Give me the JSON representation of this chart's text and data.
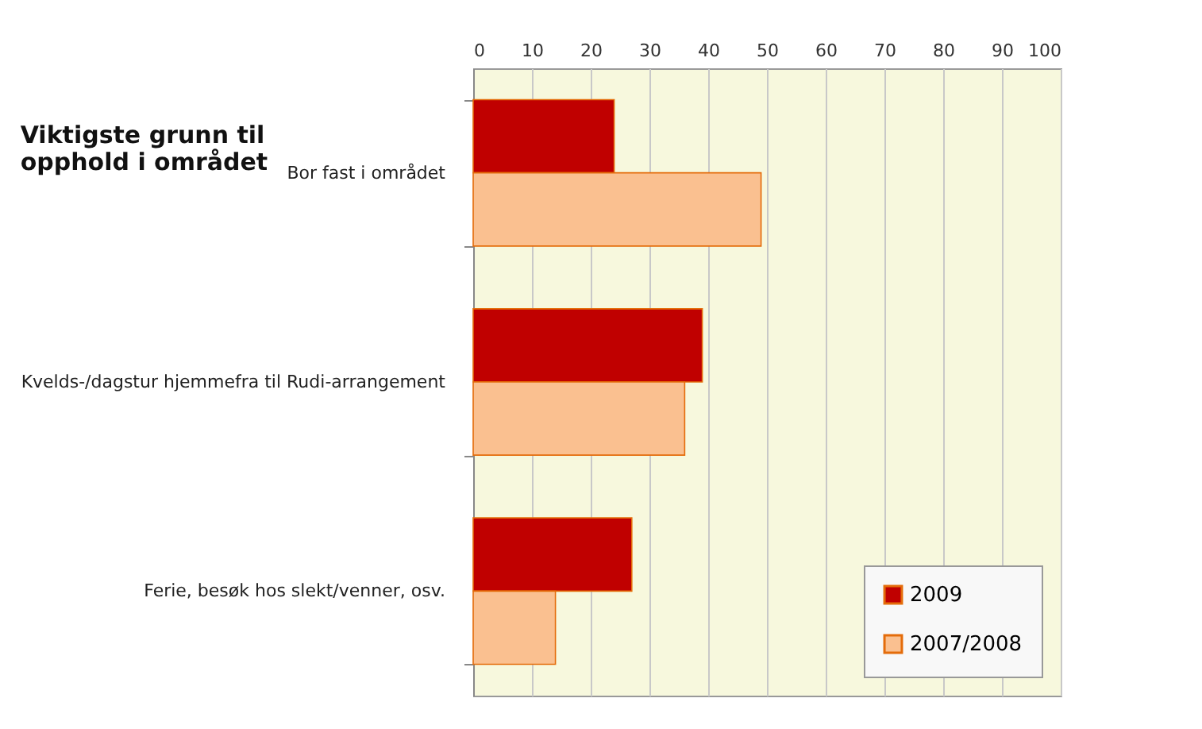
{
  "chart_data": {
    "type": "bar",
    "orientation": "horizontal",
    "title": "Viktigste grunn til\nopphold i området",
    "categories": [
      "Bor fast i området",
      "Kvelds-/dagstur hjemmefra til Rudi-arrangement",
      "Ferie, besøk hos slekt/venner, osv."
    ],
    "series": [
      {
        "name": "2009",
        "color": "#c00000",
        "values": [
          24,
          39,
          27
        ]
      },
      {
        "name": "2007/2008",
        "color": "#fac090",
        "values": [
          49,
          36,
          14
        ]
      }
    ],
    "xlim": [
      0,
      100
    ],
    "xticks": [
      0,
      10,
      20,
      30,
      40,
      50,
      60,
      70,
      80,
      90,
      100
    ],
    "grid": "x",
    "legend": "bottom right"
  }
}
